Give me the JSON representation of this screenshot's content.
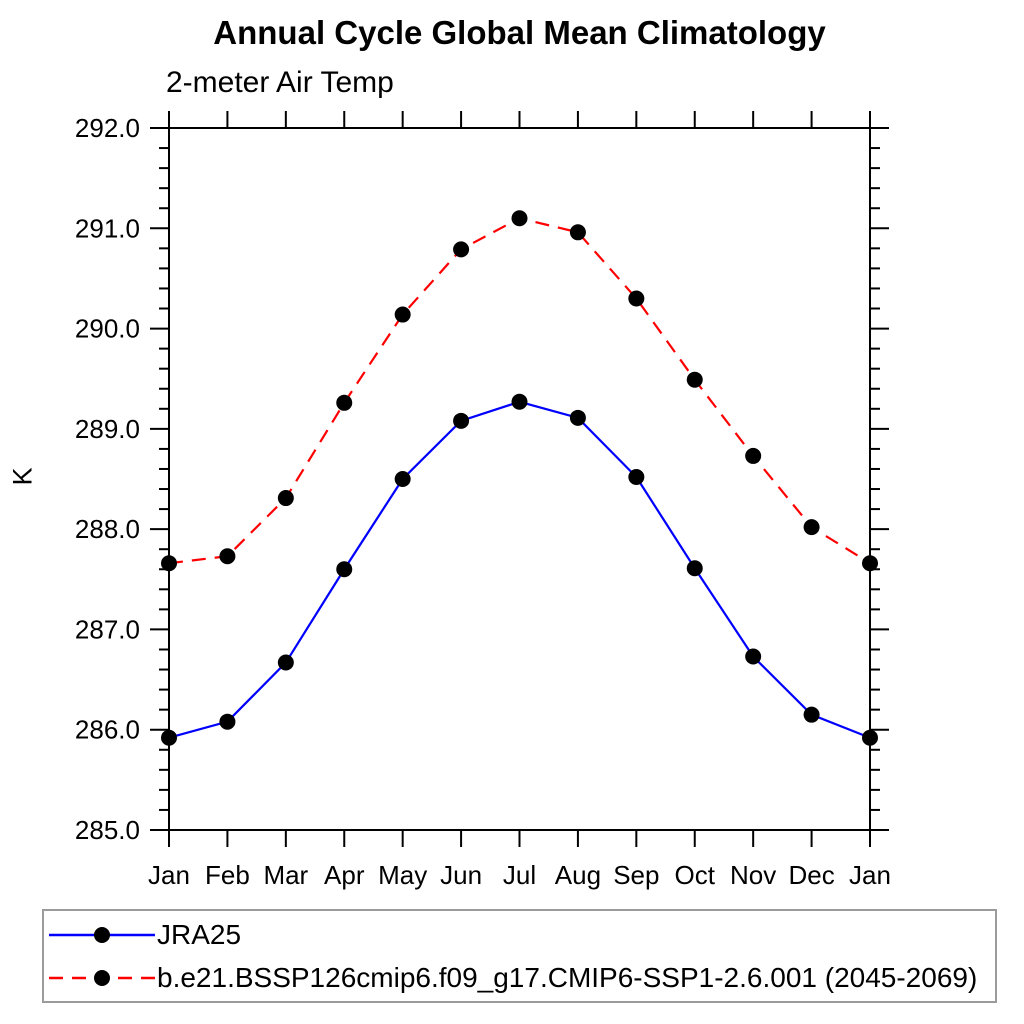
{
  "title": "Annual Cycle Global Mean Climatology",
  "subtitle": "2-meter Air Temp",
  "ylabel": "K",
  "chart_data": {
    "type": "line",
    "title": "Annual Cycle Global Mean Climatology",
    "subtitle": "2-meter Air Temp",
    "xlabel": "",
    "ylabel": "K",
    "categories": [
      "Jan",
      "Feb",
      "Mar",
      "Apr",
      "May",
      "Jun",
      "Jul",
      "Aug",
      "Sep",
      "Oct",
      "Nov",
      "Dec",
      "Jan"
    ],
    "ylim": [
      285.0,
      292.0
    ],
    "ytick_labels": [
      "285.0",
      "286.0",
      "287.0",
      "288.0",
      "289.0",
      "290.0",
      "291.0",
      "292.0"
    ],
    "ytick_step": 1.0,
    "yminor_step": 0.2,
    "grid": false,
    "legend_position": "bottom-left-box",
    "marker": "filled-circle",
    "marker_color": "#000000",
    "axis_color": "#000000",
    "series": [
      {
        "name": "JRA25",
        "color": "#0000ff",
        "style": "solid",
        "values": [
          285.92,
          286.08,
          286.67,
          287.6,
          288.5,
          289.08,
          289.27,
          289.11,
          288.52,
          287.61,
          286.73,
          286.15,
          285.92
        ]
      },
      {
        "name": "b.e21.BSSP126cmip6.f09_g17.CMIP6-SSP1-2.6.001 (2045-2069)",
        "color": "#ff0000",
        "style": "dashed",
        "values": [
          287.66,
          287.73,
          288.31,
          289.26,
          290.14,
          290.79,
          291.1,
          290.96,
          290.3,
          289.49,
          288.73,
          288.02,
          287.66
        ]
      }
    ]
  }
}
